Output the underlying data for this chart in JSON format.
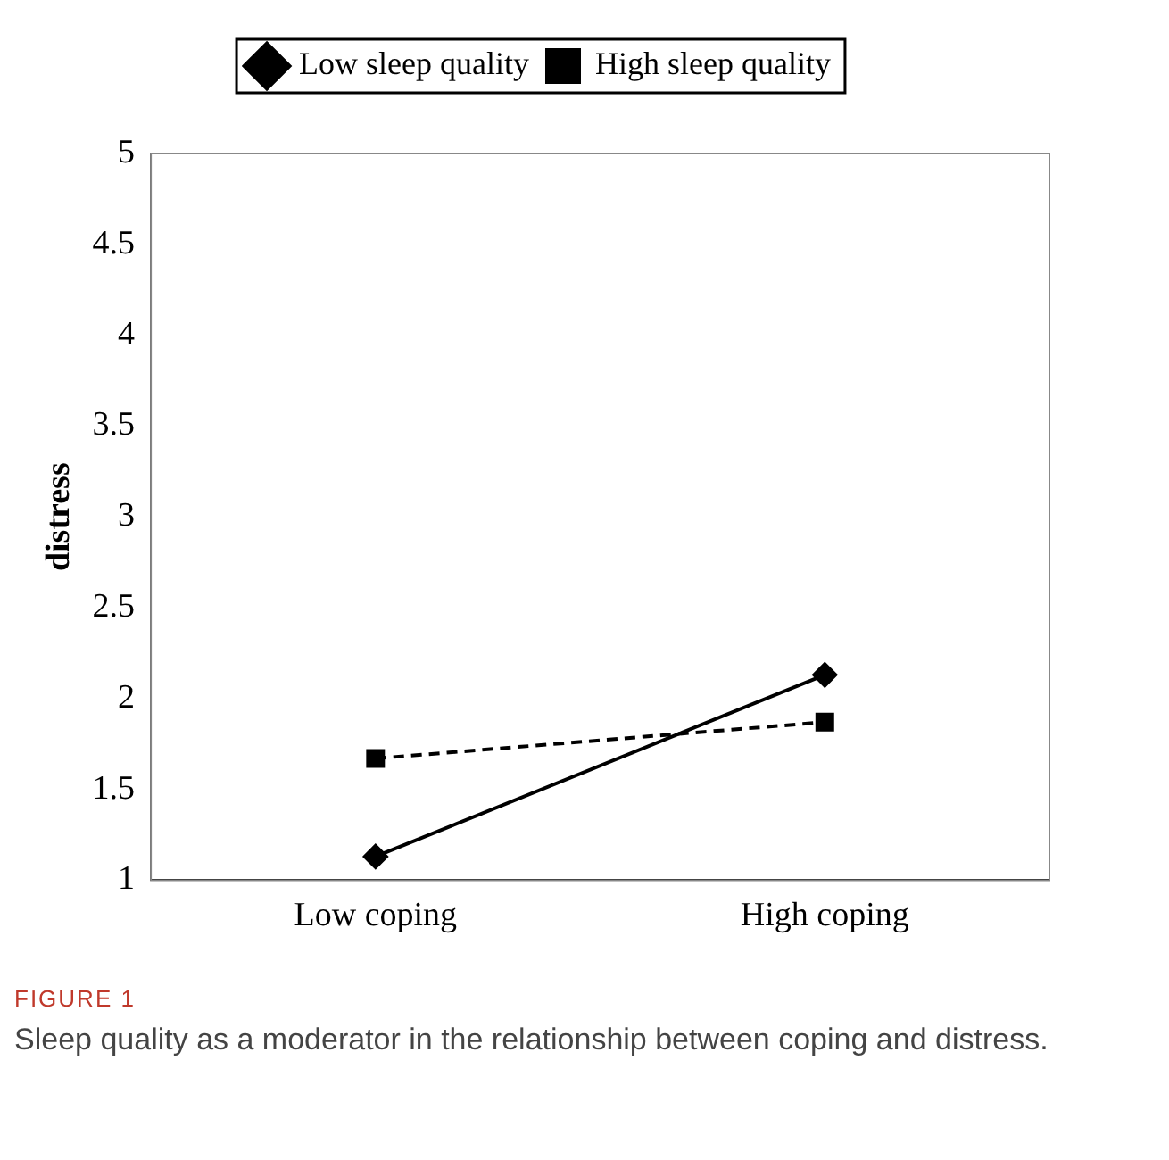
{
  "chart_data": {
    "type": "line",
    "categories": [
      "Low coping",
      "High coping"
    ],
    "ylabel": "distress",
    "ylim": [
      1,
      5
    ],
    "yticks": [
      1,
      1.5,
      2,
      2.5,
      3,
      3.5,
      4,
      4.5,
      5
    ],
    "grid": false,
    "legend": "top",
    "series": [
      {
        "name": "Low sleep quality",
        "color": "#000000",
        "values": [
          1.13,
          2.13
        ],
        "marker": "diamond",
        "line_style": "solid"
      },
      {
        "name": "High sleep quality",
        "color": "#000000",
        "values": [
          1.67,
          1.87
        ],
        "marker": "square",
        "line_style": "dashed"
      }
    ],
    "annotations": [
      "FIGURE 1",
      "Sleep quality as a moderator in the relationship between coping and distress."
    ]
  }
}
